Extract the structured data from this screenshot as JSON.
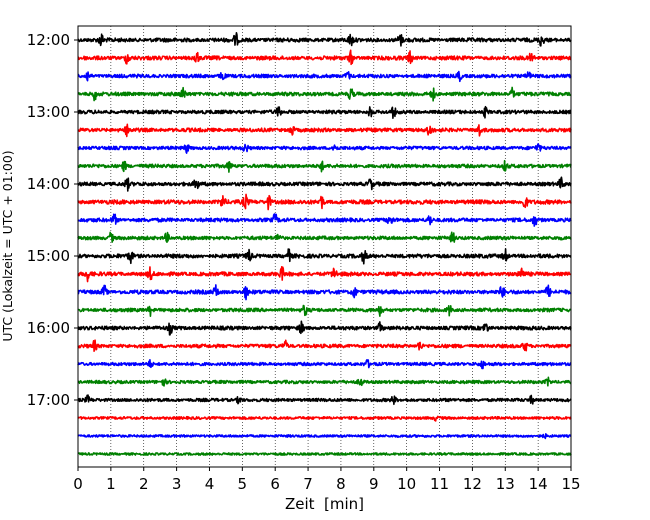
{
  "chart_data": {
    "type": "line",
    "title": "",
    "xlabel": "Zeit  [min]",
    "ylabel": "UTC (Lokalzeit = UTC + 01:00)",
    "xlim": [
      0,
      15
    ],
    "x_ticks": [
      "0",
      "1",
      "2",
      "3",
      "4",
      "5",
      "6",
      "7",
      "8",
      "9",
      "10",
      "11",
      "12",
      "13",
      "14",
      "15"
    ],
    "row_ticks": [
      {
        "row": 0,
        "label": "12:00"
      },
      {
        "row": 4,
        "label": "13:00"
      },
      {
        "row": 8,
        "label": "14:00"
      },
      {
        "row": 12,
        "label": "15:00"
      },
      {
        "row": 16,
        "label": "16:00"
      },
      {
        "row": 20,
        "label": "17:00"
      }
    ],
    "row_count": 24,
    "row_minutes": 15,
    "grid": "vertical-dotted",
    "series_colors": [
      "#000000",
      "#ff0000",
      "#0000ff",
      "#008000"
    ],
    "rows": [
      {
        "start": "12:00",
        "color": "#000000",
        "activity": 1.0,
        "events": [
          0.7,
          4.8,
          8.3,
          9.8,
          14.1
        ]
      },
      {
        "start": "12:15",
        "color": "#ff0000",
        "activity": 1.0,
        "events": [
          1.5,
          3.6,
          8.3,
          10.1,
          13.8
        ]
      },
      {
        "start": "12:30",
        "color": "#0000ff",
        "activity": 0.8,
        "events": [
          0.3,
          4.4,
          8.2,
          11.6,
          13.7
        ]
      },
      {
        "start": "12:45",
        "color": "#008000",
        "activity": 0.9,
        "events": [
          0.5,
          3.2,
          8.3,
          10.8,
          13.2
        ]
      },
      {
        "start": "13:00",
        "color": "#000000",
        "activity": 0.8,
        "events": [
          6.1,
          8.9,
          9.6,
          12.4
        ]
      },
      {
        "start": "13:15",
        "color": "#ff0000",
        "activity": 0.9,
        "events": [
          1.5,
          6.5,
          10.7,
          12.2
        ]
      },
      {
        "start": "13:30",
        "color": "#0000ff",
        "activity": 0.7,
        "events": [
          3.3,
          5.1,
          7.8,
          14.0
        ]
      },
      {
        "start": "13:45",
        "color": "#008000",
        "activity": 0.8,
        "events": [
          1.4,
          4.6,
          7.4,
          13.0
        ]
      },
      {
        "start": "14:00",
        "color": "#000000",
        "activity": 0.9,
        "events": [
          1.5,
          3.6,
          8.9,
          14.7
        ]
      },
      {
        "start": "14:15",
        "color": "#ff0000",
        "activity": 1.1,
        "events": [
          4.4,
          5.1,
          5.8,
          7.4,
          13.6
        ]
      },
      {
        "start": "14:30",
        "color": "#0000ff",
        "activity": 0.9,
        "events": [
          1.1,
          6.0,
          9.5,
          10.7,
          13.9
        ]
      },
      {
        "start": "14:45",
        "color": "#008000",
        "activity": 0.8,
        "events": [
          1.0,
          2.7,
          6.1,
          11.4
        ]
      },
      {
        "start": "15:00",
        "color": "#000000",
        "activity": 1.0,
        "events": [
          1.6,
          5.2,
          6.4,
          8.7,
          13.0
        ]
      },
      {
        "start": "15:15",
        "color": "#ff0000",
        "activity": 1.0,
        "events": [
          0.3,
          2.2,
          6.2,
          7.8,
          13.5
        ]
      },
      {
        "start": "15:30",
        "color": "#0000ff",
        "activity": 1.0,
        "events": [
          0.8,
          4.2,
          5.1,
          8.4,
          12.9,
          14.3
        ]
      },
      {
        "start": "15:45",
        "color": "#008000",
        "activity": 0.8,
        "events": [
          2.2,
          6.9,
          9.2,
          11.3
        ]
      },
      {
        "start": "16:00",
        "color": "#000000",
        "activity": 0.9,
        "events": [
          2.8,
          6.8,
          9.2,
          12.4
        ]
      },
      {
        "start": "16:15",
        "color": "#ff0000",
        "activity": 0.8,
        "events": [
          0.5,
          6.3,
          10.4,
          13.6
        ]
      },
      {
        "start": "16:30",
        "color": "#0000ff",
        "activity": 0.6,
        "events": [
          2.2,
          8.8,
          12.3
        ]
      },
      {
        "start": "16:45",
        "color": "#008000",
        "activity": 0.6,
        "events": [
          2.6,
          8.6,
          14.3
        ]
      },
      {
        "start": "17:00",
        "color": "#000000",
        "activity": 0.6,
        "events": [
          0.3,
          4.9,
          9.6,
          13.8
        ]
      },
      {
        "start": "17:15",
        "color": "#ff0000",
        "activity": 0.35,
        "events": [
          10.9
        ]
      },
      {
        "start": "17:30",
        "color": "#0000ff",
        "activity": 0.25,
        "events": [
          14.2
        ]
      },
      {
        "start": "17:45",
        "color": "#008000",
        "activity": 0.2,
        "events": []
      }
    ]
  }
}
